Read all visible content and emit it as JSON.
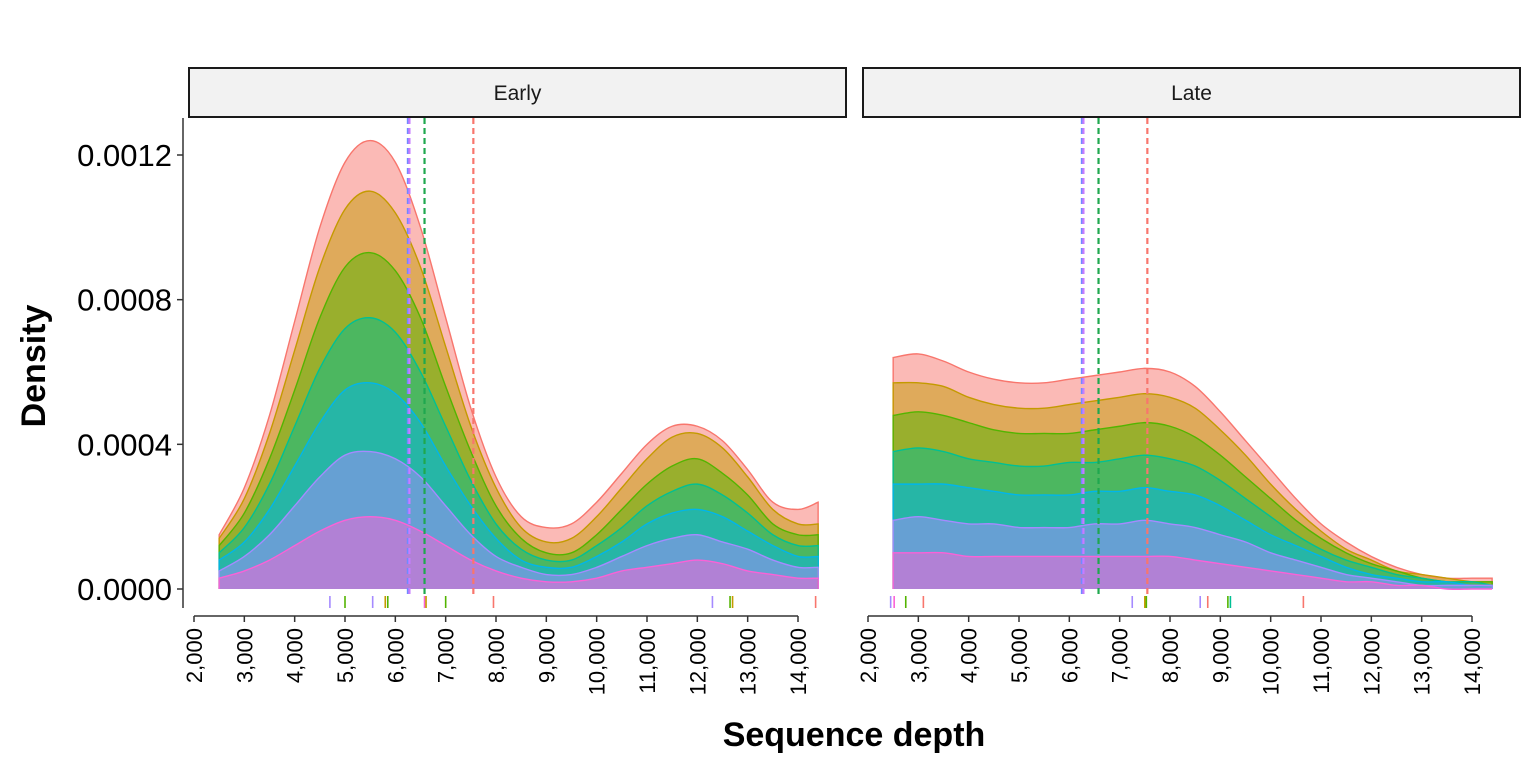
{
  "chart_data": {
    "type": "area",
    "stacked": true,
    "xlabel": "Sequence depth",
    "ylabel": "Density",
    "ylim": [
      0,
      0.0013
    ],
    "xlim": [
      2000,
      14400
    ],
    "yticks": [
      0,
      0.0004,
      0.0008,
      0.0012
    ],
    "ytick_labels": [
      "0.0000",
      "0.0004",
      "0.0008",
      "0.0012"
    ],
    "xticks": [
      2000,
      3000,
      4000,
      5000,
      6000,
      7000,
      8000,
      9000,
      10000,
      11000,
      12000,
      13000,
      14000
    ],
    "xtick_labels": [
      "2,000",
      "3,000",
      "4,000",
      "5,000",
      "6,000",
      "7,000",
      "8,000",
      "9,000",
      "10,000",
      "11,000",
      "12,000",
      "13,000",
      "14,000"
    ],
    "grid": false,
    "legend": "none",
    "layer_colors": [
      "#F8766D",
      "#C49A00",
      "#53B400",
      "#00C094",
      "#00B6EB",
      "#A58AFF",
      "#FB61D7"
    ],
    "panels": [
      {
        "label": "Early",
        "x": [
          2500,
          3000,
          3500,
          4000,
          4500,
          5000,
          5500,
          6000,
          6500,
          7000,
          7500,
          8000,
          8500,
          9000,
          9500,
          10000,
          10500,
          11000,
          11500,
          12000,
          12500,
          13000,
          13500,
          14000,
          14400
        ],
        "layers": [
          {
            "color": "#F8766D",
            "y": [
              0.00015,
              0.00028,
              0.00048,
              0.00074,
              0.001,
              0.00118,
              0.00124,
              0.00118,
              0.001,
              0.00075,
              0.0005,
              0.00031,
              0.0002,
              0.00017,
              0.00018,
              0.00024,
              0.00032,
              0.0004,
              0.00045,
              0.00045,
              0.00041,
              0.00033,
              0.00024,
              0.00022,
              0.00024
            ]
          },
          {
            "color": "#C49A00",
            "y": [
              0.00014,
              0.00025,
              0.00043,
              0.00066,
              0.00089,
              0.00105,
              0.0011,
              0.00104,
              0.00089,
              0.00067,
              0.00045,
              0.00028,
              0.00017,
              0.00013,
              0.00014,
              0.0002,
              0.00028,
              0.00036,
              0.00042,
              0.00043,
              0.00039,
              0.00031,
              0.00022,
              0.00018,
              0.00018
            ]
          },
          {
            "color": "#53B400",
            "y": [
              0.00012,
              0.00021,
              0.00036,
              0.00055,
              0.00075,
              0.00089,
              0.00093,
              0.00088,
              0.00075,
              0.00056,
              0.00038,
              0.00023,
              0.00014,
              0.0001,
              0.0001,
              0.00015,
              0.00022,
              0.00029,
              0.00034,
              0.00036,
              0.00032,
              0.00026,
              0.00018,
              0.00015,
              0.00015
            ]
          },
          {
            "color": "#00C094",
            "y": [
              0.0001,
              0.00017,
              0.00029,
              0.00045,
              0.00061,
              0.00072,
              0.00075,
              0.00071,
              0.0006,
              0.00045,
              0.0003,
              0.00018,
              0.00011,
              8e-05,
              8e-05,
              0.00012,
              0.00017,
              0.00023,
              0.00027,
              0.00029,
              0.00026,
              0.00021,
              0.00015,
              0.00012,
              0.00012
            ]
          },
          {
            "color": "#00B6EB",
            "y": [
              8e-05,
              0.00013,
              0.00022,
              0.00034,
              0.00046,
              0.00055,
              0.00057,
              0.00054,
              0.00046,
              0.00034,
              0.00023,
              0.00014,
              8e-05,
              6e-05,
              6e-05,
              9e-05,
              0.00013,
              0.00018,
              0.00021,
              0.00022,
              0.0002,
              0.00016,
              0.00012,
              9e-05,
              9e-05
            ]
          },
          {
            "color": "#A58AFF",
            "y": [
              5e-05,
              9e-05,
              0.00015,
              0.00023,
              0.00031,
              0.00037,
              0.00038,
              0.00036,
              0.00031,
              0.00023,
              0.00015,
              9e-05,
              6e-05,
              4e-05,
              4e-05,
              6e-05,
              9e-05,
              0.00012,
              0.00014,
              0.00015,
              0.00013,
              0.00011,
              8e-05,
              6e-05,
              6e-05
            ]
          },
          {
            "color": "#FB61D7",
            "y": [
              3e-05,
              5e-05,
              8e-05,
              0.00012,
              0.00016,
              0.00019,
              0.0002,
              0.00019,
              0.00016,
              0.00012,
              8e-05,
              5e-05,
              3e-05,
              2e-05,
              2e-05,
              3e-05,
              5e-05,
              6e-05,
              7e-05,
              8e-05,
              7e-05,
              5e-05,
              4e-05,
              3e-05,
              3e-05
            ]
          }
        ],
        "vlines": [
          {
            "x": 6250,
            "color": "#6F8BFF"
          },
          {
            "x": 6280,
            "color": "#C77CFF"
          },
          {
            "x": 6580,
            "color": "#1FA84F"
          },
          {
            "x": 7550,
            "color": "#F8766D"
          }
        ],
        "rug": [
          {
            "x": 4700,
            "color": "#A58AFF"
          },
          {
            "x": 5000,
            "color": "#53B400"
          },
          {
            "x": 5550,
            "color": "#A58AFF"
          },
          {
            "x": 5800,
            "color": "#C49A00"
          },
          {
            "x": 5850,
            "color": "#53B400"
          },
          {
            "x": 6580,
            "color": "#FB61D7"
          },
          {
            "x": 6610,
            "color": "#C49A00"
          },
          {
            "x": 7000,
            "color": "#53B400"
          },
          {
            "x": 7950,
            "color": "#F8766D"
          },
          {
            "x": 12300,
            "color": "#A58AFF"
          },
          {
            "x": 12650,
            "color": "#53B400"
          },
          {
            "x": 12700,
            "color": "#C49A00"
          },
          {
            "x": 14350,
            "color": "#F8766D"
          }
        ]
      },
      {
        "label": "Late",
        "x": [
          2500,
          3000,
          3500,
          4000,
          4500,
          5000,
          5500,
          6000,
          6500,
          7000,
          7500,
          8000,
          8500,
          9000,
          9500,
          10000,
          10500,
          11000,
          11500,
          12000,
          12500,
          13000,
          13500,
          14000,
          14400
        ],
        "layers": [
          {
            "color": "#F8766D",
            "y": [
              0.00064,
              0.00065,
              0.00063,
              0.0006,
              0.00058,
              0.00057,
              0.00057,
              0.00058,
              0.00059,
              0.0006,
              0.00061,
              0.0006,
              0.00056,
              0.00049,
              0.00041,
              0.00033,
              0.00025,
              0.00018,
              0.00013,
              9e-05,
              6e-05,
              4e-05,
              3e-05,
              3e-05,
              3e-05
            ]
          },
          {
            "color": "#C49A00",
            "y": [
              0.00057,
              0.00057,
              0.00056,
              0.00053,
              0.00051,
              0.0005,
              0.0005,
              0.00051,
              0.00052,
              0.00053,
              0.00054,
              0.00053,
              0.0005,
              0.00044,
              0.00037,
              0.00029,
              0.00022,
              0.00016,
              0.00011,
              8e-05,
              5e-05,
              4e-05,
              3e-05,
              2e-05,
              2e-05
            ]
          },
          {
            "color": "#53B400",
            "y": [
              0.00048,
              0.00049,
              0.00048,
              0.00046,
              0.00044,
              0.00043,
              0.00043,
              0.00043,
              0.00044,
              0.00045,
              0.00046,
              0.00045,
              0.00042,
              0.00037,
              0.00031,
              0.00025,
              0.00019,
              0.00014,
              0.0001,
              7e-05,
              5e-05,
              3e-05,
              2e-05,
              2e-05,
              2e-05
            ]
          },
          {
            "color": "#00C094",
            "y": [
              0.00038,
              0.00039,
              0.00038,
              0.00036,
              0.00035,
              0.00034,
              0.00034,
              0.00035,
              0.00035,
              0.00036,
              0.00037,
              0.00036,
              0.00034,
              0.0003,
              0.00025,
              0.0002,
              0.00015,
              0.00011,
              8e-05,
              6e-05,
              4e-05,
              3e-05,
              2e-05,
              2e-05,
              1e-05
            ]
          },
          {
            "color": "#00B6EB",
            "y": [
              0.00029,
              0.00029,
              0.00029,
              0.00028,
              0.00027,
              0.00026,
              0.00026,
              0.00026,
              0.00027,
              0.00027,
              0.00028,
              0.00027,
              0.00026,
              0.00023,
              0.00019,
              0.00015,
              0.00012,
              9e-05,
              6e-05,
              4e-05,
              3e-05,
              2e-05,
              2e-05,
              1e-05,
              1e-05
            ]
          },
          {
            "color": "#A58AFF",
            "y": [
              0.00019,
              0.0002,
              0.00019,
              0.00018,
              0.00018,
              0.00017,
              0.00017,
              0.00017,
              0.00018,
              0.00018,
              0.00019,
              0.00018,
              0.00017,
              0.00015,
              0.00013,
              0.0001,
              8e-05,
              6e-05,
              4e-05,
              3e-05,
              2e-05,
              1e-05,
              1e-05,
              1e-05,
              1e-05
            ]
          },
          {
            "color": "#FB61D7",
            "y": [
              0.0001,
              0.0001,
              0.0001,
              9e-05,
              9e-05,
              9e-05,
              9e-05,
              9e-05,
              9e-05,
              9e-05,
              9e-05,
              9e-05,
              8e-05,
              7e-05,
              6e-05,
              5e-05,
              4e-05,
              3e-05,
              2e-05,
              2e-05,
              1e-05,
              1e-05,
              0.0,
              0.0,
              0.0
            ]
          }
        ],
        "vlines": [
          {
            "x": 6250,
            "color": "#6F8BFF"
          },
          {
            "x": 6280,
            "color": "#C77CFF"
          },
          {
            "x": 6580,
            "color": "#1FA84F"
          },
          {
            "x": 7550,
            "color": "#F8766D"
          }
        ],
        "rug": [
          {
            "x": 2450,
            "color": "#A58AFF"
          },
          {
            "x": 2520,
            "color": "#FB61D7"
          },
          {
            "x": 2750,
            "color": "#53B400"
          },
          {
            "x": 3100,
            "color": "#F8766D"
          },
          {
            "x": 7250,
            "color": "#A58AFF"
          },
          {
            "x": 7500,
            "color": "#C49A00"
          },
          {
            "x": 7530,
            "color": "#53B400"
          },
          {
            "x": 8600,
            "color": "#A58AFF"
          },
          {
            "x": 8750,
            "color": "#F8766D"
          },
          {
            "x": 9150,
            "color": "#53B400"
          },
          {
            "x": 9200,
            "color": "#00C094"
          },
          {
            "x": 10650,
            "color": "#F8766D"
          }
        ]
      }
    ]
  }
}
